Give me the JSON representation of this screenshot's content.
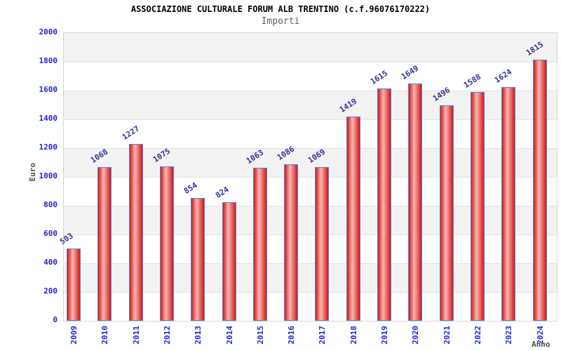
{
  "chart_data": {
    "type": "bar",
    "title": "ASSOCIAZIONE CULTURALE FORUM ALB TRENTINO (c.f.96076170222)",
    "subtitle": "Importi",
    "xlabel": "Anno",
    "ylabel": "Euro",
    "categories": [
      "2009",
      "2010",
      "2011",
      "2012",
      "2013",
      "2014",
      "2015",
      "2016",
      "2017",
      "2018",
      "2019",
      "2020",
      "2021",
      "2022",
      "2023",
      "2024"
    ],
    "values": [
      503,
      1068,
      1227,
      1075,
      854,
      824,
      1063,
      1086,
      1069,
      1419,
      1615,
      1649,
      1496,
      1588,
      1624,
      1815
    ],
    "ylim": [
      0,
      2000
    ],
    "ytick_step": 200,
    "ytick_labels": [
      "2000",
      "1800",
      "1600",
      "1400",
      "1200",
      "1000",
      "800",
      "600",
      "400",
      "200",
      "0"
    ],
    "grid": true,
    "legend_position": "none",
    "value_labels_shown": true,
    "colors": {
      "bar_fill_edge": "#d31717",
      "bar_fill_highlight": "#f9b7b3",
      "bar_border": "#4a89dc",
      "value_label": "#333399",
      "tick_label": "#2424d8",
      "axis_title": "#4d4d4d",
      "band": "#f2f2f2",
      "gridline": "#e2e2e2",
      "plot_border": "#d4d4d4",
      "title": "#000000",
      "subtitle": "#5f5f5f"
    }
  }
}
